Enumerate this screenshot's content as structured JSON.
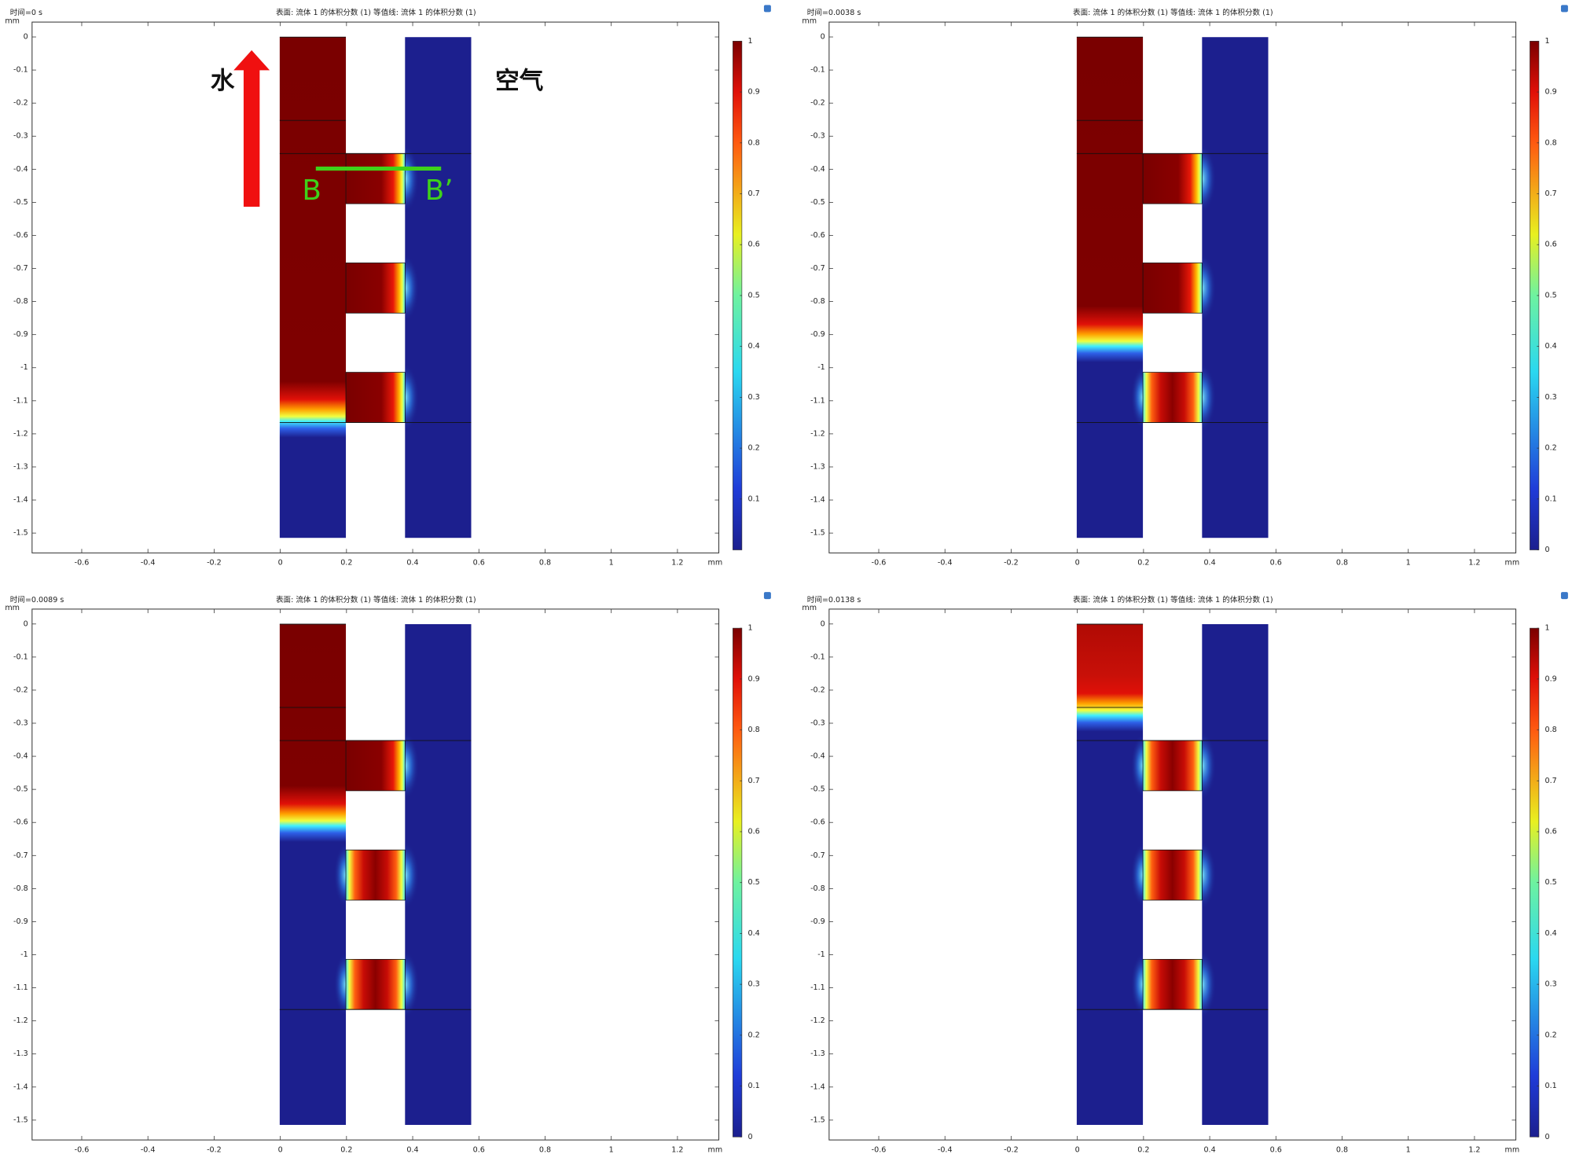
{
  "chart_data": [
    {
      "type": "surface",
      "title": "时间=0 s",
      "subtitle": "表面: 流体 1 的体积分数 (1)  等值线: 流体 1 的体积分数 (1)",
      "xlabel": "mm",
      "ylabel": "mm",
      "xlim": [
        -0.75,
        1.325
      ],
      "xticks": [
        -0.6,
        -0.4,
        -0.2,
        0,
        0.2,
        0.4,
        0.6,
        0.8,
        1,
        1.2
      ],
      "ylim": [
        -1.56,
        0.045
      ],
      "yticks": [
        0,
        -0.1,
        -0.2,
        -0.3,
        -0.4,
        -0.5,
        -0.6,
        -0.7,
        -0.8,
        -0.9,
        -1,
        -1.1,
        -1.2,
        -1.3,
        -1.4,
        -1.5
      ],
      "colorbar_lim": [
        0,
        1
      ],
      "colorbar_ticks": [
        0.1,
        0.2,
        0.3,
        0.4,
        0.5,
        0.6,
        0.7,
        0.8,
        0.9,
        1
      ],
      "annotations": [
        "水",
        "空气",
        "B",
        "B’"
      ]
    },
    {
      "type": "surface",
      "title": "时间=0.0038 s",
      "subtitle": "表面: 流体 1 的体积分数 (1)  等值线: 流体 1 的体积分数 (1)",
      "xlabel": "mm",
      "ylabel": "mm",
      "xlim": [
        -0.75,
        1.325
      ],
      "xticks": [
        -0.6,
        -0.4,
        -0.2,
        0,
        0.2,
        0.4,
        0.6,
        0.8,
        1,
        1.2
      ],
      "ylim": [
        -1.56,
        0.045
      ],
      "yticks": [
        0,
        -0.1,
        -0.2,
        -0.3,
        -0.4,
        -0.5,
        -0.6,
        -0.7,
        -0.8,
        -0.9,
        -1,
        -1.1,
        -1.2,
        -1.3,
        -1.4,
        -1.5
      ],
      "colorbar_lim": [
        0,
        1
      ],
      "colorbar_ticks": [
        0,
        0.1,
        0.2,
        0.3,
        0.4,
        0.5,
        0.6,
        0.7,
        0.8,
        0.9,
        1
      ]
    },
    {
      "type": "surface",
      "title": "时间=0.0089 s",
      "subtitle": "表面: 流体 1 的体积分数 (1)  等值线: 流体 1 的体积分数 (1)",
      "xlabel": "mm",
      "ylabel": "mm",
      "xlim": [
        -0.75,
        1.325
      ],
      "xticks": [
        -0.6,
        -0.4,
        -0.2,
        0,
        0.2,
        0.4,
        0.6,
        0.8,
        1,
        1.2
      ],
      "ylim": [
        -1.56,
        0.045
      ],
      "yticks": [
        0,
        -0.1,
        -0.2,
        -0.3,
        -0.4,
        -0.5,
        -0.6,
        -0.7,
        -0.8,
        -0.9,
        -1,
        -1.1,
        -1.2,
        -1.3,
        -1.4,
        -1.5
      ],
      "colorbar_lim": [
        0,
        1
      ],
      "colorbar_ticks": [
        0,
        0.1,
        0.2,
        0.3,
        0.4,
        0.5,
        0.6,
        0.7,
        0.8,
        0.9,
        1
      ]
    },
    {
      "type": "surface",
      "title": "时间=0.0138 s",
      "subtitle": "表面: 流体 1 的体积分数 (1)  等值线: 流体 1 的体积分数 (1)",
      "xlabel": "mm",
      "ylabel": "mm",
      "xlim": [
        -0.75,
        1.325
      ],
      "xticks": [
        -0.6,
        -0.4,
        -0.2,
        0,
        0.2,
        0.4,
        0.6,
        0.8,
        1,
        1.2
      ],
      "ylim": [
        -1.56,
        0.045
      ],
      "yticks": [
        0,
        -0.1,
        -0.2,
        -0.3,
        -0.4,
        -0.5,
        -0.6,
        -0.7,
        -0.8,
        -0.9,
        -1,
        -1.1,
        -1.2,
        -1.3,
        -1.4,
        -1.5
      ],
      "colorbar_lim": [
        0,
        1
      ],
      "colorbar_ticks": [
        0,
        0.1,
        0.2,
        0.3,
        0.4,
        0.5,
        0.6,
        0.7,
        0.8,
        0.9,
        1
      ]
    }
  ]
}
